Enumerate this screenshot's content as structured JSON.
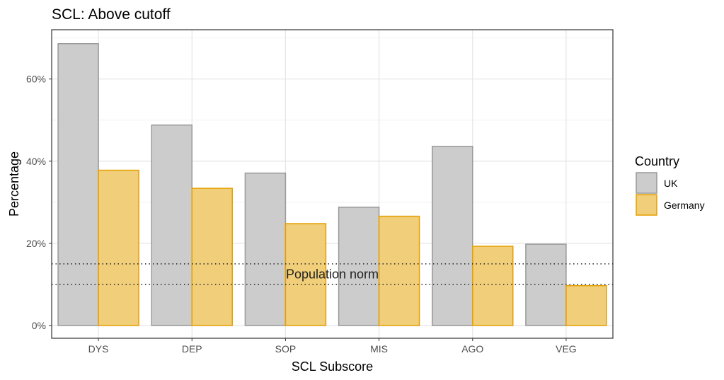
{
  "chart_data": {
    "type": "bar",
    "title": "SCL: Above cutoff",
    "xlabel": "SCL Subscore",
    "ylabel": "Percentage",
    "categories": [
      "DYS",
      "DEP",
      "SOP",
      "MIS",
      "AGO",
      "VEG"
    ],
    "series": [
      {
        "name": "UK",
        "values": [
          68.6,
          48.8,
          37.1,
          28.8,
          43.6,
          19.8
        ],
        "fill": "#cccccc",
        "stroke": "#999999"
      },
      {
        "name": "Germany",
        "values": [
          37.8,
          33.4,
          24.8,
          26.6,
          19.3,
          9.7
        ],
        "fill": "#f0ce7a",
        "stroke": "#e69f00"
      }
    ],
    "yticks": [
      0,
      20,
      40,
      60
    ],
    "ytick_labels": [
      "0%",
      "20%",
      "40%",
      "60%"
    ],
    "ylim": [
      -3.1,
      72
    ],
    "grid": true,
    "reference_lines": [
      15,
      10
    ],
    "annotation": {
      "text": "Population norm",
      "y": 12.5
    },
    "legend": {
      "title": "Country",
      "placement": "right"
    }
  }
}
